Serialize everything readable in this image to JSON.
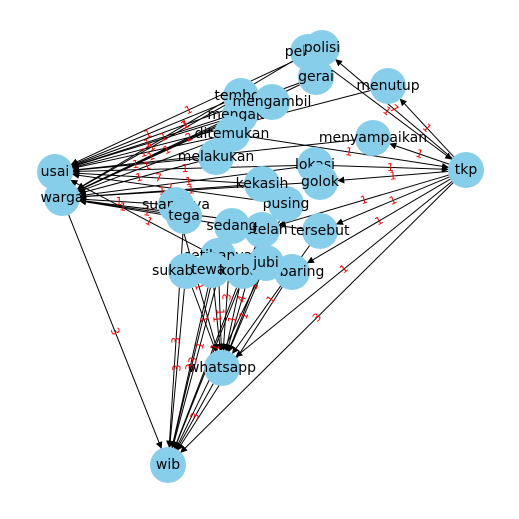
{
  "diagram": {
    "node_color": "#87ceeb",
    "edge_color": "#000000",
    "edge_label_color": "#ff0000",
    "nodes": [
      {
        "id": "usai",
        "label": "usai"
      },
      {
        "id": "warga",
        "label": "warga"
      },
      {
        "id": "tkp",
        "label": "tkp"
      },
      {
        "id": "wib",
        "label": "wib"
      },
      {
        "id": "whatsapp",
        "label": "whatsapp"
      },
      {
        "id": "tersebut",
        "label": "tersebut"
      },
      {
        "id": "terbaring",
        "label": "terbaring"
      },
      {
        "id": "setelah",
        "label": "setelah"
      },
      {
        "id": "setibanya",
        "label": "setibanya"
      },
      {
        "id": "sukabumi",
        "label": "sukabumi"
      },
      {
        "id": "tewas",
        "label": "tewas"
      },
      {
        "id": "korban",
        "label": "korban"
      },
      {
        "id": "jubi",
        "label": "jubi"
      },
      {
        "id": "suaminya",
        "label": "suaminya"
      },
      {
        "id": "tega",
        "label": "tega"
      },
      {
        "id": "sedang",
        "label": "sedang"
      },
      {
        "id": "pusing",
        "label": "pusing"
      },
      {
        "id": "kekasih",
        "label": "kekasih"
      },
      {
        "id": "tembok",
        "label": "tembok"
      },
      {
        "id": "menutup",
        "label": "menutup"
      },
      {
        "id": "pelaku",
        "label": "pelaku"
      },
      {
        "id": "gerai",
        "label": "gerai"
      },
      {
        "id": "mengaku",
        "label": "mengaku"
      },
      {
        "id": "mengambil",
        "label": "mengambil"
      },
      {
        "id": "polisi",
        "label": "polisi"
      },
      {
        "id": "melakukan",
        "label": "melakukan"
      },
      {
        "id": "ditemukan",
        "label": "ditemukan"
      },
      {
        "id": "lokasi",
        "label": "lokasi"
      },
      {
        "id": "menyampaikan",
        "label": "menyampaikan"
      },
      {
        "id": "golok",
        "label": "golok"
      }
    ],
    "edges": [
      {
        "source": "warga",
        "target": "wib",
        "label": "3"
      },
      {
        "source": "tkp",
        "target": "wib",
        "label": "3"
      },
      {
        "source": "whatsapp",
        "target": "wib",
        "label": "3"
      },
      {
        "source": "tkp",
        "target": "tersebut",
        "label": "1"
      },
      {
        "source": "tkp",
        "target": "menutup",
        "label": "1"
      },
      {
        "source": "tkp",
        "target": "whatsapp",
        "label": "1"
      },
      {
        "source": "tkp",
        "target": "terbaring",
        "label": "1"
      },
      {
        "source": "tkp",
        "target": "menyampaikan",
        "label": "1"
      },
      {
        "source": "tkp",
        "target": "golok",
        "label": "1"
      },
      {
        "source": "tkp",
        "target": "setelah",
        "label": "1"
      },
      {
        "source": "tkp",
        "target": "polisi",
        "label": "7"
      },
      {
        "source": "tembok",
        "target": "usai",
        "label": "1"
      },
      {
        "source": "kekasih",
        "target": "usai",
        "label": "7"
      },
      {
        "source": "gerai",
        "target": "usai",
        "label": "1"
      },
      {
        "source": "mengaku",
        "target": "usai",
        "label": "1"
      },
      {
        "source": "mengambil",
        "target": "usai",
        "label": "1"
      },
      {
        "source": "melakukan",
        "target": "usai",
        "label": "1"
      },
      {
        "source": "korban",
        "target": "usai",
        "label": "1"
      },
      {
        "source": "pusing",
        "target": "usai",
        "label": "1"
      },
      {
        "source": "pelaku",
        "target": "warga",
        "label": "1"
      },
      {
        "source": "ditemukan",
        "target": "warga",
        "label": "1"
      },
      {
        "source": "lokasi",
        "target": "warga",
        "label": "1"
      },
      {
        "source": "suaminya",
        "target": "warga",
        "label": "1"
      },
      {
        "source": "tega",
        "target": "warga",
        "label": "1"
      },
      {
        "source": "sedang",
        "target": "warga",
        "label": "1"
      },
      {
        "source": "tersebut",
        "target": "warga",
        "label": "1"
      },
      {
        "source": "setibanya",
        "target": "wib",
        "label": "3"
      },
      {
        "source": "sukabumi",
        "target": "wib",
        "label": "3"
      },
      {
        "source": "tewas",
        "target": "wib",
        "label": "3"
      },
      {
        "source": "korban",
        "target": "wib",
        "label": "3"
      },
      {
        "source": "jubi",
        "target": "wib",
        "label": "3"
      },
      {
        "source": "setelah",
        "target": "wib",
        "label": "1"
      },
      {
        "source": "terbaring",
        "target": "wib",
        "label": "3"
      },
      {
        "source": "sedang",
        "target": "wib",
        "label": "1"
      },
      {
        "source": "suaminya",
        "target": "whatsapp",
        "label": "1"
      },
      {
        "source": "setibanya",
        "target": "whatsapp",
        "label": "1"
      },
      {
        "source": "tewas",
        "target": "whatsapp",
        "label": "1"
      },
      {
        "source": "jubi",
        "target": "whatsapp",
        "label": "1"
      },
      {
        "source": "setelah",
        "target": "whatsapp",
        "label": "4"
      },
      {
        "source": "tersebut",
        "target": "whatsapp",
        "label": "1"
      },
      {
        "source": "polisi",
        "target": "usai",
        "label": "1"
      },
      {
        "source": "ditemukan",
        "target": "usai",
        "label": "1"
      },
      {
        "source": "lokasi",
        "target": "usai",
        "label": "1"
      },
      {
        "source": "menyampaikan",
        "target": "usai",
        "label": "1"
      },
      {
        "source": "golok",
        "target": "warga",
        "label": "1"
      },
      {
        "source": "tembok",
        "target": "warga",
        "label": "1"
      },
      {
        "source": "mengaku",
        "target": "warga",
        "label": "1"
      },
      {
        "source": "kekasih",
        "target": "warga",
        "label": "1"
      },
      {
        "source": "pusing",
        "target": "whatsapp",
        "label": "1"
      },
      {
        "source": "sedang",
        "target": "whatsapp",
        "label": "3"
      },
      {
        "source": "korban",
        "target": "whatsapp",
        "label": "1"
      },
      {
        "source": "tega",
        "target": "wib",
        "label": "3"
      },
      {
        "source": "sukabumi",
        "target": "whatsapp",
        "label": "1"
      },
      {
        "source": "pelaku",
        "target": "tkp",
        "label": "1"
      },
      {
        "source": "menutup",
        "target": "usai",
        "label": "1"
      },
      {
        "source": "melakukan",
        "target": "warga",
        "label": "1"
      },
      {
        "source": "mengambil",
        "target": "warga",
        "label": "1"
      },
      {
        "source": "gerai",
        "target": "warga",
        "label": "2"
      },
      {
        "source": "ditemukan",
        "target": "tkp",
        "label": "1"
      },
      {
        "source": "lokasi",
        "target": "tkp",
        "label": "1"
      }
    ]
  }
}
